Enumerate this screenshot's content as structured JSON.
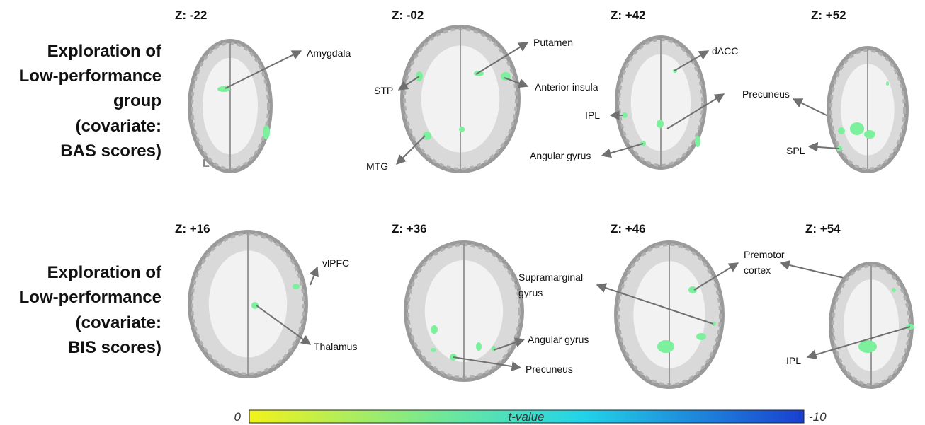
{
  "rows": [
    {
      "label": [
        "Exploration of",
        "Low-performance",
        "group",
        "(covariate:",
        "BAS scores)"
      ],
      "slices": [
        {
          "z": "Z: -22",
          "side": "L",
          "regions": [
            {
              "lines": [
                "Amygdala"
              ]
            }
          ]
        },
        {
          "z": "Z: -02",
          "regions": [
            {
              "lines": [
                "Putamen"
              ]
            },
            {
              "lines": [
                "STP"
              ]
            },
            {
              "lines": [
                "Anterior insula"
              ]
            },
            {
              "lines": [
                "MTG"
              ]
            }
          ]
        },
        {
          "z": "Z: +42",
          "regions": [
            {
              "lines": [
                "dACC"
              ]
            },
            {
              "lines": [
                "IPL"
              ]
            },
            {
              "lines": [
                "Precuneus"
              ]
            },
            {
              "lines": [
                "Angular gyrus"
              ]
            }
          ]
        },
        {
          "z": "Z: +52",
          "regions": [
            {
              "lines": [
                "SPL"
              ]
            }
          ]
        }
      ]
    },
    {
      "label": [
        "Exploration of",
        "Low-performance",
        "(covariate:",
        "BIS scores)"
      ],
      "slices": [
        {
          "z": "Z: +16",
          "regions": [
            {
              "lines": [
                "vlPFC"
              ]
            },
            {
              "lines": [
                "Thalamus"
              ]
            }
          ]
        },
        {
          "z": "Z: +36",
          "regions": [
            {
              "lines": [
                "Angular gyrus"
              ]
            },
            {
              "lines": [
                "Precuneus"
              ]
            }
          ]
        },
        {
          "z": "Z: +46",
          "regions": [
            {
              "lines": [
                "Supramarginal",
                "gyrus"
              ]
            },
            {
              "lines": [
                "Premotor",
                "cortex"
              ]
            }
          ]
        },
        {
          "z": "Z: +54",
          "regions": [
            {
              "lines": [
                "IPL"
              ]
            }
          ]
        }
      ]
    }
  ],
  "colorbar": {
    "min_label": "0",
    "title": "t-value",
    "max_label": "-10"
  }
}
